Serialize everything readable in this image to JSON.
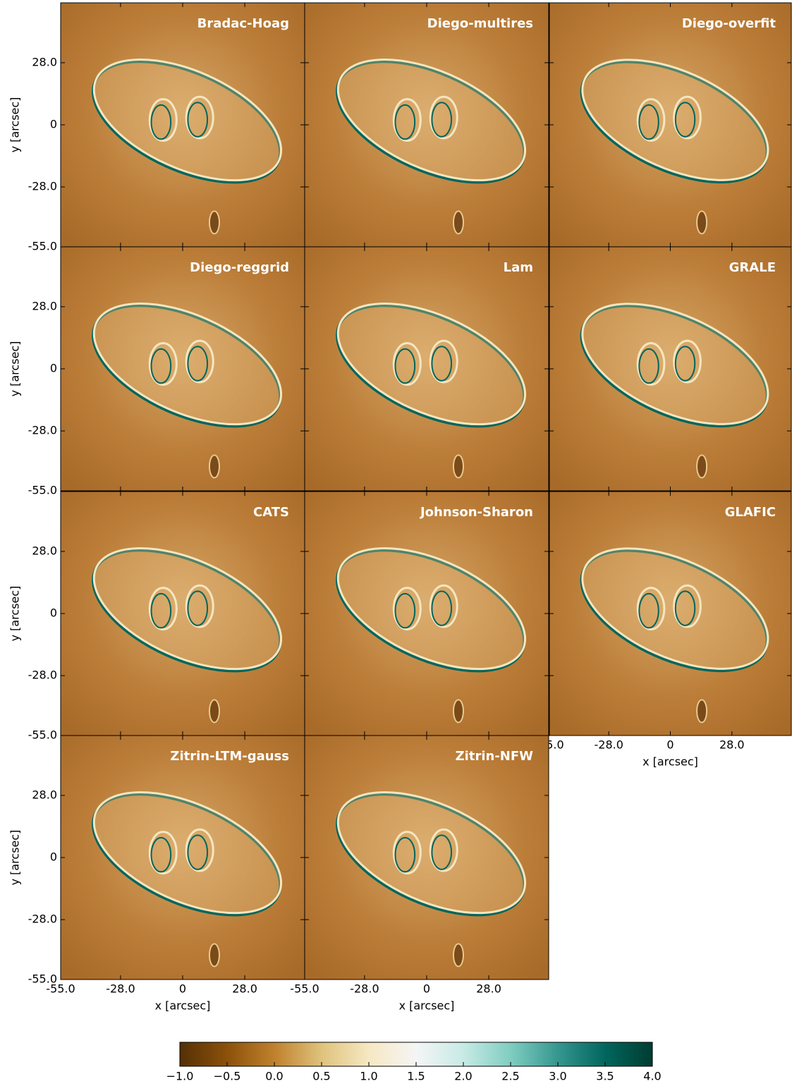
{
  "chart_data": {
    "type": "heatmap-grid",
    "panels": [
      {
        "title": "Bradac-Hoag"
      },
      {
        "title": "Diego-multires"
      },
      {
        "title": "Diego-overfit"
      },
      {
        "title": "Diego-reggrid"
      },
      {
        "title": "Lam"
      },
      {
        "title": "GRALE"
      },
      {
        "title": "CATS"
      },
      {
        "title": "Johnson-Sharon"
      },
      {
        "title": "GLAFIC"
      },
      {
        "title": "Zitrin-LTM-gauss"
      },
      {
        "title": "Zitrin-NFW"
      }
    ],
    "columns": 3,
    "xlabel": "x [arcsec]",
    "ylabel": "y [arcsec]",
    "xlim": [
      -55,
      55
    ],
    "ylim": [
      -55,
      55
    ],
    "xticks": [
      {
        "value": -55,
        "label": "-55.0"
      },
      {
        "value": -28,
        "label": "-28.0"
      },
      0,
      {
        "value": 28,
        "label": "28.0"
      }
    ],
    "yticks": [
      {
        "value": -55,
        "label": "-55.0"
      },
      {
        "value": -28,
        "label": "-28.0"
      },
      0,
      {
        "value": 28,
        "label": "28.0"
      }
    ],
    "colorbar": {
      "lim": [
        -1,
        4
      ],
      "ticks": [
        {
          "value": -1,
          "label": "−1.0"
        },
        {
          "value": -0.5,
          "label": "−0.5"
        },
        {
          "value": 0,
          "label": "0.0"
        },
        {
          "value": 0.5,
          "label": "0.5"
        },
        {
          "value": 1,
          "label": "1.0"
        },
        {
          "value": 1.5,
          "label": "1.5"
        },
        {
          "value": 2,
          "label": "2.0"
        },
        {
          "value": 2.5,
          "label": "2.5"
        },
        {
          "value": 3,
          "label": "3.0"
        },
        {
          "value": 3.5,
          "label": "3.5"
        },
        {
          "value": 4,
          "label": "4.0"
        }
      ],
      "colors": [
        "#543005",
        "#8c510a",
        "#bf812d",
        "#dfc27d",
        "#f6e8c3",
        "#f5f5f5",
        "#c7eae5",
        "#80cdc1",
        "#35978f",
        "#01665e",
        "#003c30"
      ]
    }
  }
}
